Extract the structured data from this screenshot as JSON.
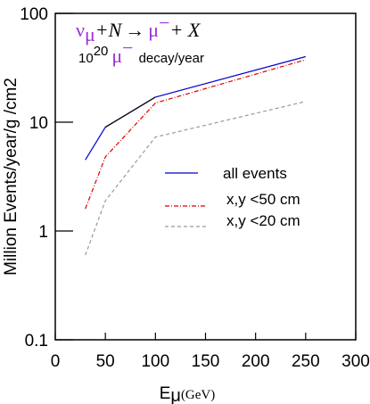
{
  "chart_data": {
    "type": "line",
    "title": "",
    "xlabel_main": "E",
    "xlabel_sub": "μ",
    "xlabel_unit": "(GeV)",
    "ylabel": "Million Events/year/g /cm2",
    "xlim": [
      0,
      300
    ],
    "ylim": [
      0.1,
      100
    ],
    "yscale": "log",
    "x_ticks": [
      "0",
      "50",
      "100",
      "150",
      "200",
      "250",
      "300"
    ],
    "y_ticks": [
      "0.1",
      "1",
      "10",
      "100"
    ],
    "grid": false,
    "legend_position": "center-right",
    "annotations": {
      "line1": {
        "nu": "ν",
        "nu_sub": "μ",
        "plus_n": "+N",
        "arrow": "→",
        "mu": "μ",
        "mu_sup": "−",
        "plus_x": "+ X"
      },
      "line2": {
        "prefix": "10",
        "prefix_sup": "20",
        "mu": "μ",
        "mu_sup": "−",
        "suffix": "decay/year"
      }
    },
    "series": [
      {
        "name": "all events",
        "color": "#0000cc",
        "dash": "solid",
        "x": [
          30,
          50,
          100,
          250
        ],
        "y": [
          4.5,
          9.0,
          17.0,
          40.0
        ]
      },
      {
        "name": "x,y <50 cm",
        "color": "#dd0000",
        "dash": "dashdot",
        "x": [
          30,
          50,
          100,
          250
        ],
        "y": [
          1.6,
          4.8,
          15.0,
          37.5
        ]
      },
      {
        "name": "x,y <20 cm",
        "color": "#999999",
        "dash": "dashed",
        "x": [
          30,
          50,
          100,
          250
        ],
        "y": [
          0.6,
          1.9,
          7.3,
          15.5
        ]
      }
    ]
  }
}
